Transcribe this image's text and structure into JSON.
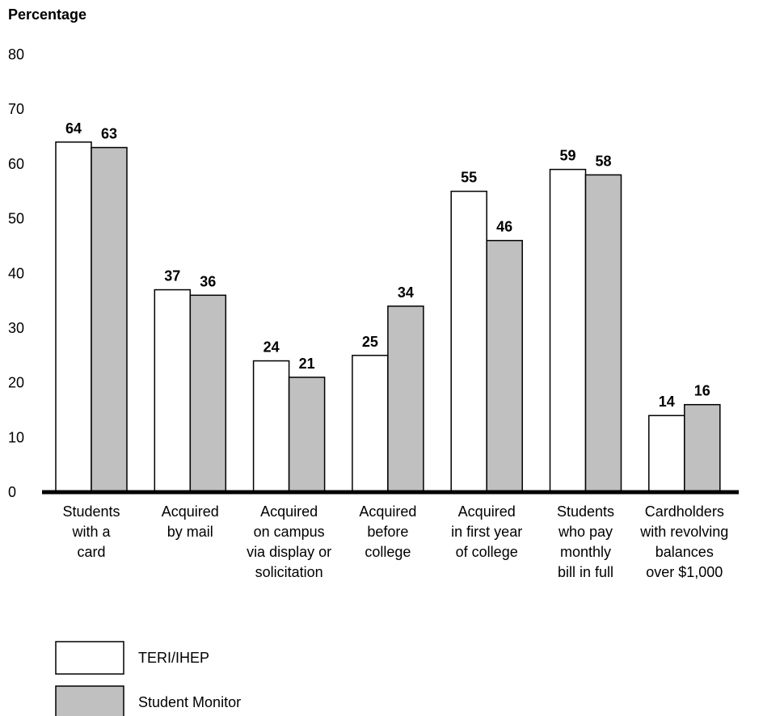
{
  "chart_data": {
    "type": "bar",
    "ylabel": "Percentage",
    "ylim": [
      0,
      80
    ],
    "yticks": [
      0,
      10,
      20,
      30,
      40,
      50,
      60,
      70,
      80
    ],
    "grid": false,
    "legend_position": "bottom-left",
    "categories": [
      [
        "Students",
        "with a",
        "card"
      ],
      [
        "Acquired",
        "by mail"
      ],
      [
        "Acquired",
        "on campus",
        "via display or",
        "solicitation"
      ],
      [
        "Acquired",
        "before",
        "college"
      ],
      [
        "Acquired",
        "in first year",
        "of college"
      ],
      [
        "Students",
        "who pay",
        "monthly",
        "bill in full"
      ],
      [
        "Cardholders",
        "with revolving",
        "balances",
        "over $1,000"
      ]
    ],
    "series": [
      {
        "name": "TERI/IHEP",
        "color": "#ffffff",
        "values": [
          64,
          37,
          24,
          25,
          55,
          59,
          14
        ]
      },
      {
        "name": "Student Monitor",
        "color": "#c0c0c0",
        "values": [
          63,
          36,
          21,
          34,
          46,
          58,
          16
        ]
      }
    ]
  }
}
